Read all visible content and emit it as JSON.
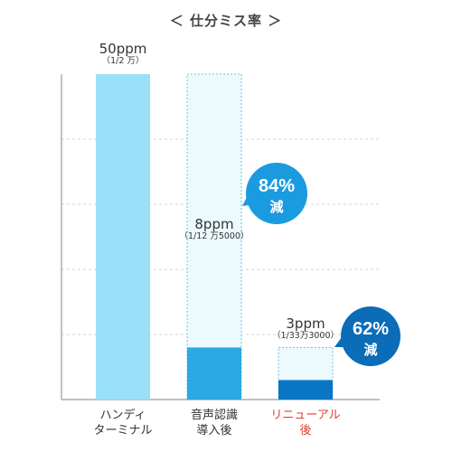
{
  "page_title": "＜ 仕分ミス率 ＞",
  "colors": {
    "bar_full": "#99e0f8",
    "bar_ghost": "#edfafd",
    "bar_ghost_border": "#6cc3de",
    "bar_mid": "#2aa9e2",
    "bar_dark": "#0a76c3",
    "bubble": "#1b9bdf",
    "bubble_dark": "#0b6cb7",
    "grid": "#d5d5d5",
    "axis": "#9a9a9a",
    "highlight_label": "#e43d2b"
  },
  "chart_data": {
    "type": "bar",
    "title": "＜ 仕分ミス率 ＞",
    "unit": "ppm",
    "ylim": [
      0,
      50
    ],
    "gridlines": [
      10,
      20,
      30,
      40,
      50
    ],
    "grid": true,
    "categories": [
      {
        "lines": [
          "ハンディ",
          "ターミナル"
        ],
        "highlight": false
      },
      {
        "lines": [
          "音声認識",
          "導入後"
        ],
        "highlight": false
      },
      {
        "lines": [
          "リニューアル後"
        ],
        "highlight": true
      }
    ],
    "values": [
      50,
      8,
      3
    ],
    "value_labels": [
      "50ppm",
      "8ppm",
      "3ppm"
    ],
    "sub_labels": [
      "（1/2 万）",
      "（1/12 万5000）",
      "（1/33万3000）"
    ],
    "reference_values": [
      null,
      50,
      8
    ],
    "reductions": [
      {
        "from_bar": 1,
        "text_pct": "84%",
        "text_word": "減"
      },
      {
        "from_bar": 2,
        "text_pct": "62%",
        "text_word": "減"
      }
    ]
  }
}
